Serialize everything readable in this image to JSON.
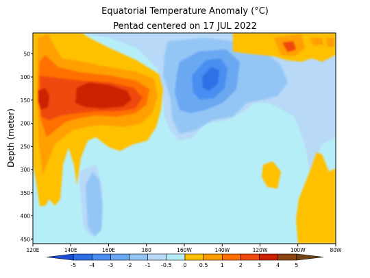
{
  "chart_data": {
    "type": "heatmap",
    "title": "Equatorial Temperature Anomaly (°C)",
    "subtitle": "Pentad centered on 17 JUL 2022",
    "ylabel": "Depth (meter)",
    "xlabel": "",
    "x_ticks": [
      "120E",
      "140E",
      "160E",
      "180",
      "160W",
      "140W",
      "120W",
      "100W",
      "80W"
    ],
    "y_ticks": [
      "50",
      "100",
      "150",
      "200",
      "250",
      "300",
      "350",
      "400",
      "450"
    ],
    "x_range_deg_east": [
      120,
      280
    ],
    "y_range_m": [
      5,
      460
    ],
    "y_reversed": true,
    "grid": false,
    "colorbar": {
      "labels": [
        "-5",
        "-4",
        "-3",
        "-2",
        "-1",
        "-0.5",
        "0",
        "0.5",
        "1",
        "2",
        "3",
        "4",
        "5"
      ],
      "levels": [
        -5,
        -4,
        -3,
        -2,
        -1,
        -0.5,
        0.5,
        1,
        2,
        3,
        4,
        5
      ],
      "colors": [
        "#1d4fd6",
        "#2f6fe6",
        "#4a8ef0",
        "#6aa8f2",
        "#94c6f5",
        "#b8d9f7",
        "#b6eef8",
        "#ffc000",
        "#ff9f00",
        "#ff7000",
        "#ef4a10",
        "#cc2000",
        "#8b4513",
        "#704214"
      ]
    },
    "features": [
      {
        "name": "warm core",
        "lon_range": [
          120,
          172
        ],
        "depth_range_m": [
          60,
          220
        ],
        "peak_anomaly": 3.5
      },
      {
        "name": "cold core",
        "lon_range": [
          196,
          216
        ],
        "depth_range_m": [
          80,
          160
        ],
        "peak_anomaly": -3
      },
      {
        "name": "warm surface eastern",
        "lon_range": [
          226,
          280
        ],
        "depth_range_m": [
          10,
          60
        ],
        "peak_anomaly": 3
      },
      {
        "name": "warm deep eastern",
        "lon_range": [
          256,
          276
        ],
        "depth_range_m": [
          260,
          460
        ],
        "peak_anomaly": 0.6
      }
    ],
    "plot_bg_anomaly": 0
  }
}
